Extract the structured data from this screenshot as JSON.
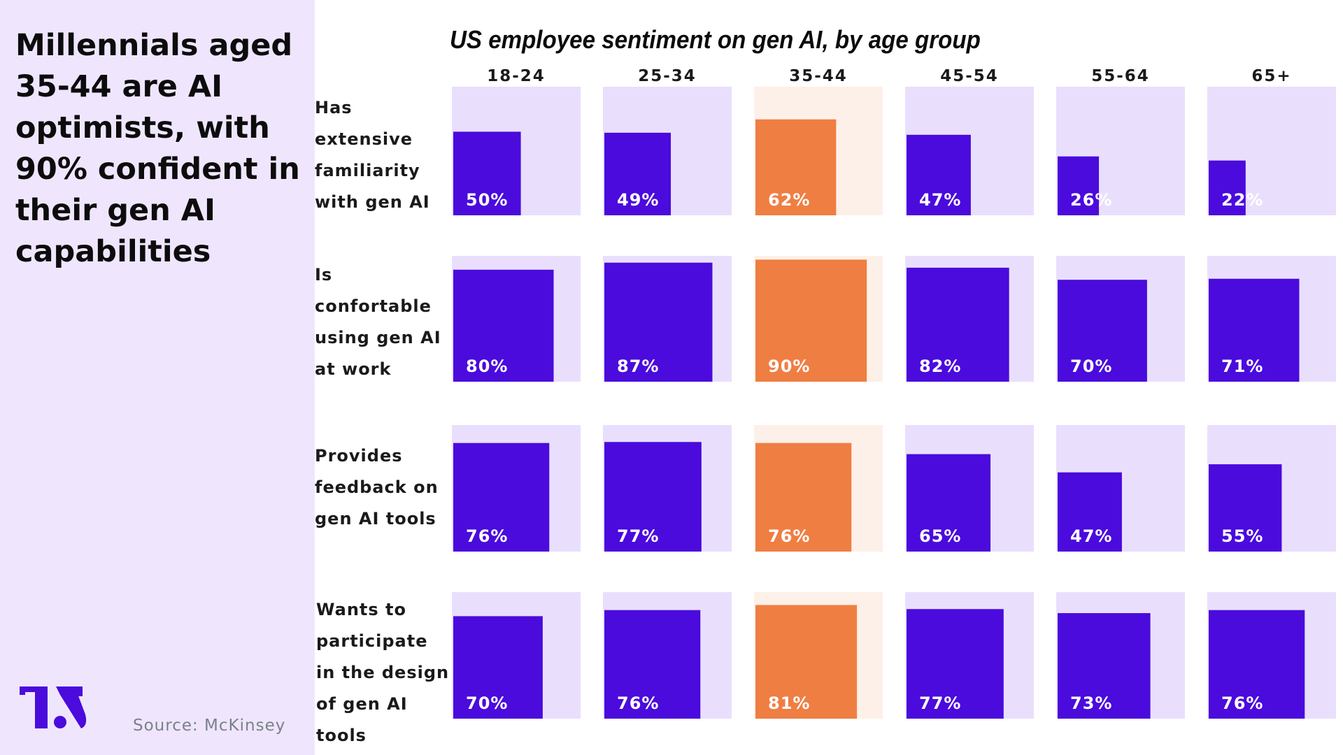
{
  "headline": "Millennials aged 35-44 are AI optimists, with 90% confident in their gen AI capabilities",
  "source": "Source: McKinsey",
  "logo": {
    "text": "TS",
    "color": "#4a0bdc"
  },
  "colors": {
    "panel_bg": "#efe6fe",
    "bar": "#4a0bdc",
    "bar_bg": "#e9dffd",
    "highlight_bar": "#ef7e42",
    "highlight_bg": "#fdf0e8"
  },
  "chart_data": {
    "type": "bar",
    "title": "US employee sentiment on gen AI, by age group",
    "categories": [
      "18-24",
      "25-34",
      "35-44",
      "45-54",
      "55-64",
      "65+"
    ],
    "highlight_category": "35-44",
    "unit": "%",
    "series": [
      {
        "name": "Has extensive familiarity with gen AI",
        "label_lines": "Has\nextensive\nfamiliarity\nwith gen AI",
        "values": [
          50,
          49,
          62,
          47,
          26,
          22
        ]
      },
      {
        "name": "Is confortable using gen AI at work",
        "label_lines": "Is\nconfortable\nusing gen AI\nat work",
        "values": [
          80,
          87,
          90,
          82,
          70,
          71
        ]
      },
      {
        "name": "Provides feedback on gen AI tools",
        "label_lines": "Provides\nfeedback on\ngen AI tools",
        "values": [
          76,
          77,
          76,
          65,
          47,
          55
        ]
      },
      {
        "name": "Wants to participate in the design of gen AI tools",
        "label_lines": "Wants to\nparticipate\nin the design\nof  gen AI\ntools",
        "values": [
          70,
          76,
          81,
          77,
          73,
          76
        ]
      }
    ],
    "ylim": [
      0,
      100
    ]
  }
}
